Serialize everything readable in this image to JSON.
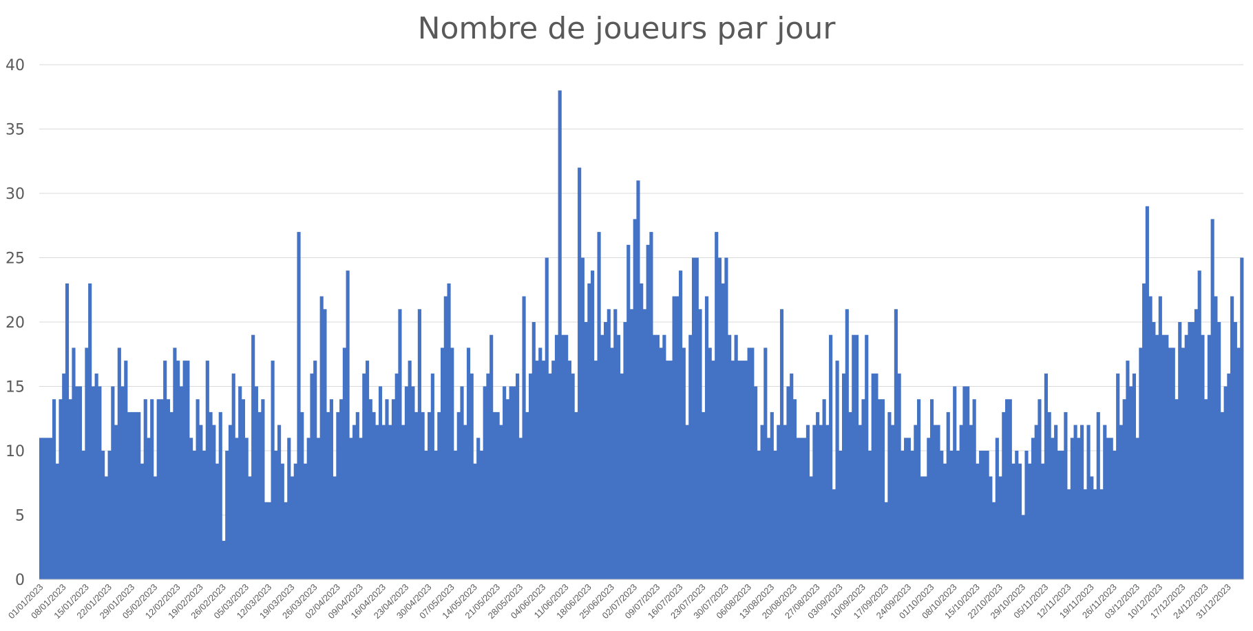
{
  "chart_data": {
    "type": "bar",
    "title": "Nombre de joueurs par jour",
    "xlabel": "",
    "ylabel": "",
    "ylim": [
      0,
      40
    ],
    "yticks": [
      0,
      5,
      10,
      15,
      20,
      25,
      30,
      35,
      40
    ],
    "grid": true,
    "legend": "none",
    "bar_color": "#4472c4",
    "start_date": "01/01/2023",
    "end_date": "31/12/2023",
    "x_tick_labels": [
      "01/01/2023",
      "08/01/2023",
      "15/01/2023",
      "22/01/2023",
      "29/01/2023",
      "05/02/2023",
      "12/02/2023",
      "19/02/2023",
      "26/02/2023",
      "05/03/2023",
      "12/03/2023",
      "19/03/2023",
      "26/03/2023",
      "02/04/2023",
      "09/04/2023",
      "16/04/2023",
      "23/04/2023",
      "30/04/2023",
      "07/05/2023",
      "14/05/2023",
      "21/05/2023",
      "28/05/2023",
      "04/06/2023",
      "11/06/2023",
      "18/06/2023",
      "25/06/2023",
      "02/07/2023",
      "09/07/2023",
      "16/07/2023",
      "23/07/2023",
      "30/07/2023",
      "06/08/2023",
      "13/08/2023",
      "20/08/2023",
      "27/08/2023",
      "03/09/2023",
      "10/09/2023",
      "17/09/2023",
      "24/09/2023",
      "01/10/2023",
      "08/10/2023",
      "15/10/2023",
      "22/10/2023",
      "29/10/2023",
      "05/11/2023",
      "12/11/2023",
      "19/11/2023",
      "26/11/2023",
      "03/12/2023",
      "10/12/2023",
      "17/12/2023",
      "24/12/2023",
      "31/12/2023"
    ],
    "values": [
      11,
      11,
      11,
      11,
      14,
      9,
      14,
      16,
      23,
      14,
      18,
      15,
      15,
      10,
      18,
      23,
      15,
      16,
      15,
      10,
      8,
      10,
      15,
      12,
      18,
      15,
      17,
      13,
      13,
      13,
      13,
      9,
      14,
      11,
      14,
      8,
      14,
      14,
      17,
      14,
      13,
      18,
      17,
      15,
      17,
      17,
      11,
      10,
      14,
      12,
      10,
      17,
      13,
      12,
      9,
      13,
      3,
      10,
      12,
      16,
      11,
      15,
      14,
      11,
      8,
      19,
      15,
      13,
      14,
      6,
      6,
      17,
      10,
      12,
      9,
      6,
      11,
      8,
      9,
      27,
      13,
      9,
      11,
      16,
      17,
      11,
      22,
      21,
      13,
      14,
      8,
      13,
      14,
      18,
      24,
      11,
      12,
      13,
      11,
      16,
      17,
      14,
      13,
      12,
      15,
      12,
      14,
      12,
      14,
      16,
      21,
      12,
      15,
      17,
      15,
      13,
      21,
      13,
      10,
      13,
      16,
      10,
      13,
      18,
      22,
      23,
      18,
      10,
      13,
      15,
      12,
      18,
      16,
      9,
      11,
      10,
      15,
      16,
      19,
      13,
      13,
      12,
      15,
      14,
      15,
      15,
      16,
      11,
      22,
      13,
      16,
      20,
      17,
      18,
      17,
      25,
      16,
      17,
      19,
      38,
      19,
      19,
      17,
      16,
      13,
      32,
      25,
      20,
      23,
      24,
      17,
      27,
      19,
      20,
      21,
      18,
      21,
      19,
      16,
      20,
      26,
      21,
      28,
      31,
      23,
      21,
      26,
      27,
      19,
      19,
      18,
      19,
      17,
      17,
      22,
      22,
      24,
      18,
      12,
      19,
      25,
      25,
      21,
      13,
      22,
      18,
      17,
      27,
      25,
      23,
      25,
      19,
      17,
      19,
      17,
      17,
      17,
      18,
      18,
      15,
      10,
      12,
      18,
      11,
      13,
      10,
      12,
      21,
      12,
      15,
      16,
      14,
      11,
      11,
      11,
      12,
      8,
      12,
      13,
      12,
      14,
      12,
      19,
      7,
      17,
      10,
      16,
      21,
      13,
      19,
      19,
      12,
      14,
      19,
      10,
      16,
      16,
      14,
      14,
      6,
      13,
      12,
      21,
      16,
      10,
      11,
      11,
      10,
      12,
      14,
      8,
      8,
      11,
      14,
      12,
      12,
      10,
      9,
      13,
      10,
      15,
      10,
      12,
      15,
      15,
      12,
      14,
      9,
      10,
      10,
      10,
      8,
      6,
      11,
      8,
      13,
      14,
      14,
      9,
      10,
      9,
      5,
      10,
      9,
      11,
      12,
      14,
      9,
      16,
      13,
      11,
      12,
      10,
      10,
      13,
      7,
      11,
      12,
      11,
      12,
      7,
      12,
      8,
      7,
      13,
      7,
      12,
      11,
      11,
      10,
      16,
      12,
      14,
      17,
      15,
      16,
      11,
      18,
      23,
      29,
      22,
      20,
      19,
      22,
      19,
      19,
      18,
      18,
      14,
      20,
      18,
      19,
      20,
      20,
      21,
      24,
      19,
      14,
      19,
      28,
      22,
      20,
      13,
      15,
      16,
      22,
      20,
      18,
      25
    ]
  }
}
